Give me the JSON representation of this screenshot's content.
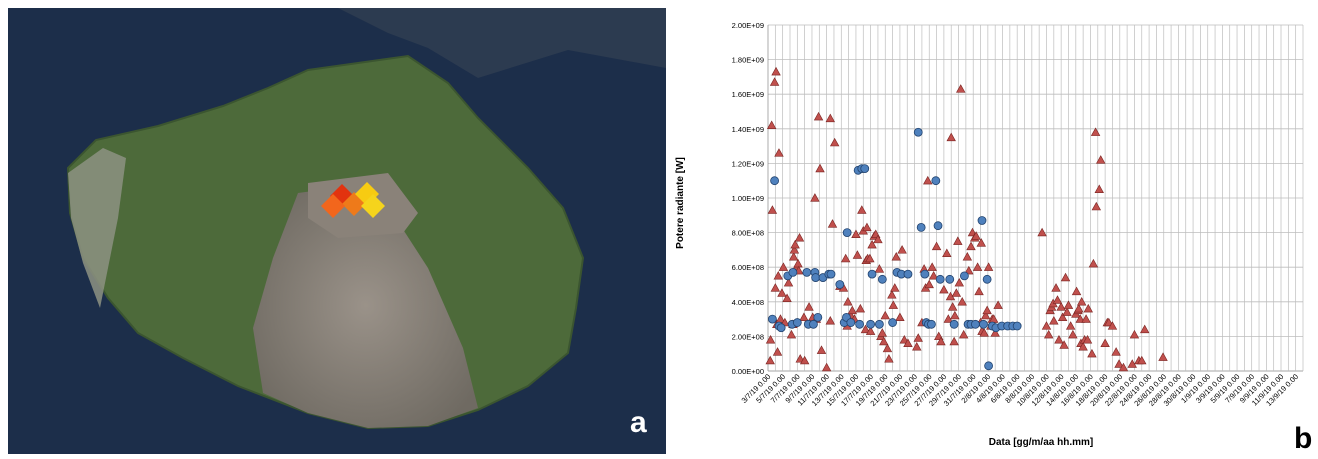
{
  "figure": {
    "panel_a_label": "a",
    "panel_b_label": "b"
  },
  "colors": {
    "sea": "#1c2e4a",
    "island_green": "#4d6a3a",
    "ash": "#857d73",
    "triangle": "#c0504d",
    "triangle_edge": "#7a2522",
    "circle": "#4f81bd",
    "circle_edge": "#22436e",
    "grid": "#bdbdbd"
  },
  "chart_data": {
    "type": "scatter",
    "title": "",
    "xlabel": "Data [gg/m/aa hh.mm]",
    "ylabel": "Potere radiante [W]",
    "ylim": [
      0,
      2000000000
    ],
    "y_ticks": [
      "0.00E+00",
      "2.00E+08",
      "4.00E+08",
      "6.00E+08",
      "8.00E+08",
      "1.00E+09",
      "1.20E+09",
      "1.40E+09",
      "1.60E+09",
      "1.80E+09",
      "2.00E+09"
    ],
    "x_tick_labels": [
      "3/7/19 0.00",
      "5/7/19 0.00",
      "7/7/19 0.00",
      "9/7/19 0.00",
      "11/7/19 0.00",
      "13/7/19 0.00",
      "15/7/19 0.00",
      "17/7/19 0.00",
      "19/7/19 0.00",
      "21/7/19 0.00",
      "23/7/19 0.00",
      "25/7/19 0.00",
      "27/7/19 0.00",
      "29/7/19 0.00",
      "31/7/19 0.00",
      "2/8/19 0.00",
      "4/8/19 0.00",
      "6/8/19 0.00",
      "8/8/19 0.00",
      "10/8/19 0.00",
      "12/8/19 0.00",
      "14/8/19 0.00",
      "16/8/19 0.00",
      "18/8/19 0.00",
      "20/8/19 0.00",
      "22/8/19 0.00",
      "24/8/19 0.00",
      "26/8/19 0.00",
      "28/8/19 0.00",
      "30/8/19 0.00",
      "1/9/19 0.00",
      "3/9/19 0.00",
      "5/9/19 0.00",
      "7/9/19 0.00",
      "9/9/19 0.00",
      "11/9/19 0.00",
      "13/9/19 0.00"
    ],
    "x_range_days": [
      0,
      73
    ],
    "grid": true,
    "legend": "none",
    "series": [
      {
        "marker": "triangle",
        "points": [
          [
            0.3,
            0.06
          ],
          [
            0.35,
            0.18
          ],
          [
            0.5,
            1.42
          ],
          [
            0.6,
            0.93
          ],
          [
            0.9,
            1.67
          ],
          [
            1.0,
            0.48
          ],
          [
            1.1,
            1.73
          ],
          [
            1.2,
            0.27
          ],
          [
            1.3,
            0.11
          ],
          [
            1.4,
            0.55
          ],
          [
            1.5,
            1.26
          ],
          [
            1.7,
            0.3
          ],
          [
            1.9,
            0.45
          ],
          [
            2.1,
            0.6
          ],
          [
            2.3,
            0.28
          ],
          [
            2.6,
            0.42
          ],
          [
            2.8,
            0.51
          ],
          [
            3.2,
            0.21
          ],
          [
            3.4,
            0.27
          ],
          [
            3.5,
            0.66
          ],
          [
            3.6,
            0.7
          ],
          [
            3.7,
            0.73
          ],
          [
            3.9,
            0.6
          ],
          [
            4.1,
            0.62
          ],
          [
            4.2,
            0.58
          ],
          [
            4.3,
            0.77
          ],
          [
            4.4,
            0.07
          ],
          [
            4.9,
            0.31
          ],
          [
            5.0,
            0.06
          ],
          [
            5.6,
            0.37
          ],
          [
            6.1,
            0.31
          ],
          [
            6.4,
            1.0
          ],
          [
            6.6,
            0.3
          ],
          [
            6.9,
            1.47
          ],
          [
            7.1,
            1.17
          ],
          [
            7.3,
            0.12
          ],
          [
            8.0,
            0.02
          ],
          [
            8.5,
            0.29
          ],
          [
            8.5,
            1.46
          ],
          [
            8.8,
            0.85
          ],
          [
            9.1,
            1.32
          ],
          [
            9.8,
            0.49
          ],
          [
            10.3,
            0.48
          ],
          [
            10.6,
            0.65
          ],
          [
            10.8,
            0.26
          ],
          [
            10.9,
            0.4
          ],
          [
            11.3,
            0.32
          ],
          [
            11.5,
            0.35
          ],
          [
            11.8,
            0.3
          ],
          [
            12.0,
            0.79
          ],
          [
            12.2,
            0.67
          ],
          [
            12.6,
            0.36
          ],
          [
            12.8,
            0.93
          ],
          [
            13.0,
            0.81
          ],
          [
            13.3,
            0.24
          ],
          [
            13.4,
            0.64
          ],
          [
            13.5,
            0.83
          ],
          [
            13.6,
            0.65
          ],
          [
            13.9,
            0.65
          ],
          [
            14.0,
            0.23
          ],
          [
            14.2,
            0.73
          ],
          [
            14.5,
            0.78
          ],
          [
            14.7,
            0.79
          ],
          [
            15.0,
            0.76
          ],
          [
            15.2,
            0.59
          ],
          [
            15.4,
            0.2
          ],
          [
            15.6,
            0.22
          ],
          [
            15.8,
            0.17
          ],
          [
            16.0,
            0.32
          ],
          [
            16.3,
            0.13
          ],
          [
            16.5,
            0.07
          ],
          [
            16.9,
            0.44
          ],
          [
            17.1,
            0.38
          ],
          [
            17.3,
            0.48
          ],
          [
            17.5,
            0.66
          ],
          [
            18.0,
            0.31
          ],
          [
            18.3,
            0.7
          ],
          [
            18.6,
            0.18
          ],
          [
            19.1,
            0.16
          ],
          [
            20.3,
            0.14
          ],
          [
            20.5,
            0.19
          ],
          [
            21.0,
            0.28
          ],
          [
            21.3,
            0.59
          ],
          [
            21.5,
            0.48
          ],
          [
            21.8,
            1.1
          ],
          [
            22.0,
            0.5
          ],
          [
            22.4,
            0.6
          ],
          [
            22.6,
            0.55
          ],
          [
            23.0,
            0.72
          ],
          [
            23.3,
            0.2
          ],
          [
            23.6,
            0.17
          ],
          [
            24.0,
            0.47
          ],
          [
            24.4,
            0.68
          ],
          [
            24.6,
            0.3
          ],
          [
            24.9,
            0.43
          ],
          [
            25.0,
            1.35
          ],
          [
            25.2,
            0.37
          ],
          [
            25.4,
            0.17
          ],
          [
            25.5,
            0.32
          ],
          [
            25.7,
            0.45
          ],
          [
            25.9,
            0.75
          ],
          [
            26.1,
            0.51
          ],
          [
            26.3,
            1.63
          ],
          [
            26.5,
            0.4
          ],
          [
            26.7,
            0.21
          ],
          [
            27.2,
            0.66
          ],
          [
            27.4,
            0.58
          ],
          [
            27.7,
            0.72
          ],
          [
            27.9,
            0.8
          ],
          [
            28.2,
            0.77
          ],
          [
            28.4,
            0.78
          ],
          [
            28.6,
            0.6
          ],
          [
            28.8,
            0.46
          ],
          [
            29.0,
            0.28
          ],
          [
            29.1,
            0.74
          ],
          [
            29.2,
            0.23
          ],
          [
            29.5,
            0.22
          ],
          [
            29.7,
            0.32
          ],
          [
            29.9,
            0.35
          ],
          [
            30.1,
            0.6
          ],
          [
            30.4,
            0.26
          ],
          [
            30.6,
            0.3
          ],
          [
            30.8,
            0.3
          ],
          [
            31.0,
            0.22
          ],
          [
            31.4,
            0.38
          ],
          [
            37.4,
            0.8
          ],
          [
            38.0,
            0.26
          ],
          [
            38.3,
            0.21
          ],
          [
            38.5,
            0.35
          ],
          [
            38.7,
            0.37
          ],
          [
            38.9,
            0.39
          ],
          [
            39.0,
            0.29
          ],
          [
            39.3,
            0.48
          ],
          [
            39.5,
            0.41
          ],
          [
            39.7,
            0.18
          ],
          [
            40.0,
            0.37
          ],
          [
            40.2,
            0.31
          ],
          [
            40.4,
            0.15
          ],
          [
            40.6,
            0.54
          ],
          [
            40.8,
            0.34
          ],
          [
            41.0,
            0.38
          ],
          [
            41.3,
            0.26
          ],
          [
            41.6,
            0.21
          ],
          [
            42.0,
            0.33
          ],
          [
            42.1,
            0.46
          ],
          [
            42.3,
            0.35
          ],
          [
            42.4,
            0.36
          ],
          [
            42.6,
            0.3
          ],
          [
            42.7,
            0.16
          ],
          [
            42.8,
            0.4
          ],
          [
            43.0,
            0.14
          ],
          [
            43.2,
            0.18
          ],
          [
            43.4,
            0.3
          ],
          [
            43.6,
            0.18
          ],
          [
            43.7,
            0.36
          ],
          [
            44.2,
            0.1
          ],
          [
            44.4,
            0.62
          ],
          [
            44.7,
            1.38
          ],
          [
            44.8,
            0.95
          ],
          [
            45.2,
            1.05
          ],
          [
            45.4,
            1.22
          ],
          [
            46.0,
            0.16
          ],
          [
            46.3,
            0.28
          ],
          [
            46.5,
            0.28
          ],
          [
            47.0,
            0.26
          ],
          [
            47.5,
            0.11
          ],
          [
            47.9,
            0.04
          ],
          [
            48.5,
            0.02
          ],
          [
            49.7,
            0.04
          ],
          [
            50.0,
            0.21
          ],
          [
            50.6,
            0.06
          ],
          [
            51.0,
            0.06
          ],
          [
            51.4,
            0.24
          ],
          [
            53.9,
            0.08
          ]
        ]
      },
      {
        "marker": "circle",
        "points": [
          [
            0.6,
            0.3
          ],
          [
            0.9,
            1.1
          ],
          [
            1.5,
            0.26
          ],
          [
            1.8,
            0.25
          ],
          [
            2.7,
            0.55
          ],
          [
            3.3,
            0.27
          ],
          [
            3.4,
            0.57
          ],
          [
            4.0,
            0.28
          ],
          [
            5.3,
            0.57
          ],
          [
            5.5,
            0.27
          ],
          [
            6.2,
            0.27
          ],
          [
            6.4,
            0.57
          ],
          [
            6.5,
            0.54
          ],
          [
            6.8,
            0.31
          ],
          [
            7.5,
            0.54
          ],
          [
            8.3,
            0.56
          ],
          [
            8.6,
            0.56
          ],
          [
            9.8,
            0.5
          ],
          [
            10.4,
            0.28
          ],
          [
            10.7,
            0.31
          ],
          [
            10.8,
            0.8
          ],
          [
            11.3,
            0.28
          ],
          [
            12.3,
            1.16
          ],
          [
            12.5,
            0.27
          ],
          [
            12.8,
            1.17
          ],
          [
            13.2,
            1.17
          ],
          [
            14.0,
            0.27
          ],
          [
            14.2,
            0.56
          ],
          [
            15.2,
            0.27
          ],
          [
            15.6,
            0.53
          ],
          [
            17.0,
            0.28
          ],
          [
            17.6,
            0.57
          ],
          [
            18.2,
            0.56
          ],
          [
            19.1,
            0.56
          ],
          [
            20.5,
            1.38
          ],
          [
            20.9,
            0.83
          ],
          [
            21.4,
            0.56
          ],
          [
            21.6,
            0.28
          ],
          [
            21.9,
            0.27
          ],
          [
            22.3,
            0.27
          ],
          [
            22.9,
            1.1
          ],
          [
            23.2,
            0.84
          ],
          [
            23.5,
            0.53
          ],
          [
            24.8,
            0.53
          ],
          [
            25.4,
            0.27
          ],
          [
            26.8,
            0.55
          ],
          [
            27.3,
            0.27
          ],
          [
            27.7,
            0.27
          ],
          [
            28.3,
            0.27
          ],
          [
            29.2,
            0.87
          ],
          [
            29.4,
            0.27
          ],
          [
            29.9,
            0.53
          ],
          [
            30.1,
            0.03
          ],
          [
            30.6,
            0.26
          ],
          [
            31.1,
            0.25
          ],
          [
            31.9,
            0.26
          ],
          [
            32.7,
            0.26
          ],
          [
            33.4,
            0.26
          ],
          [
            34.0,
            0.26
          ]
        ]
      }
    ]
  }
}
